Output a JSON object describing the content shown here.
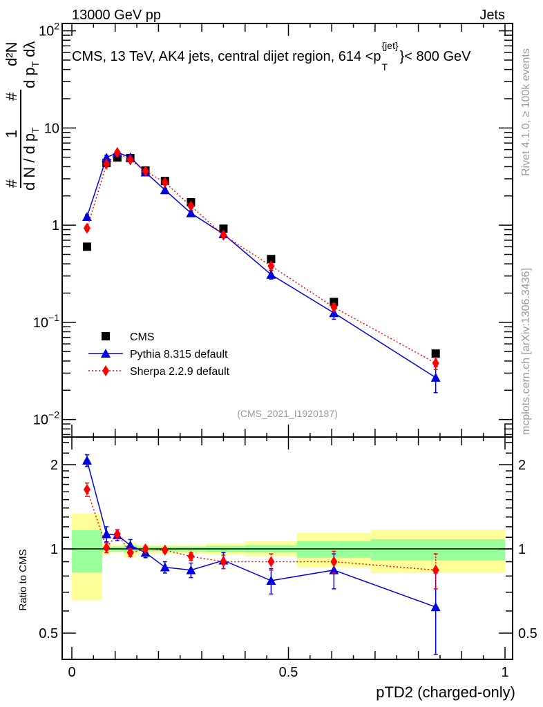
{
  "header": {
    "left": "13000 GeV pp",
    "right": "Jets",
    "side_top": "Rivet 4.1.0, ≥ 100k events",
    "side_bottom": "mcplots.cern.ch [arXiv:1306.3436]",
    "analysis_id": "(CMS_2021_I1920187)"
  },
  "chart_data": [
    {
      "type": "scatter",
      "title": "CMS, 13 TeV, AK4 jets, central dijet region, 614 <p_T^{jet}< 800 GeV",
      "title_parts": {
        "main": "CMS, 13 TeV, AK4 jets, central dijet region, 614 <p",
        "sub": "T",
        "sup": "{jet}",
        "tail": "}< 800 GeV"
      },
      "ylabel": "1 / (dN / dp_T) · d²N / (dp_T dλ)",
      "ylabel_parts": {
        "num_left": "1",
        "den_left": "d N / d p",
        "sub": "T",
        "num_right": "d²N",
        "den_right": "d p",
        "den_right_tail": "dλ",
        "hash": "#"
      },
      "yscale": "log",
      "ylim": [
        0.0066,
        119
      ],
      "ytick_labels": [
        {
          "v": 100,
          "base": "10",
          "exp": "2"
        },
        {
          "v": 10,
          "base": "10",
          "exp": ""
        },
        {
          "v": 1,
          "base": "1",
          "exp": ""
        },
        {
          "v": 0.1,
          "base": "10",
          "exp": "−1"
        },
        {
          "v": 0.01,
          "base": "10",
          "exp": "−2"
        }
      ],
      "x": [
        0.035,
        0.08,
        0.105,
        0.135,
        0.17,
        0.215,
        0.275,
        0.35,
        0.46,
        0.605,
        0.84
      ],
      "series": [
        {
          "name": "CMS",
          "marker": "square",
          "color": "#000000",
          "line": "none",
          "values": [
            0.6,
            4.36,
            4.98,
            4.9,
            3.65,
            2.85,
            1.72,
            0.92,
            0.448,
            0.162,
            0.0477
          ]
        },
        {
          "name": "Pythia 8.315 default",
          "marker": "triangle",
          "color": "#0000dd",
          "line": "solid",
          "values": [
            1.22,
            4.95,
            5.6,
            5.0,
            3.5,
            2.3,
            1.33,
            0.81,
            0.31,
            0.125,
            0.027
          ],
          "rel_err": [
            0.05,
            0.06,
            0.045,
            0.05,
            0.04,
            0.045,
            0.06,
            0.065,
            0.1,
            0.14,
            0.3
          ]
        },
        {
          "name": "Sherpa 2.2.9 default",
          "marker": "diamond",
          "color": "#ff0000",
          "line": "dotted",
          "values": [
            0.93,
            4.25,
            5.6,
            4.7,
            3.6,
            2.75,
            1.57,
            0.79,
            0.38,
            0.143,
            0.038
          ],
          "rel_err": [
            0.06,
            0.04,
            0.035,
            0.035,
            0.025,
            0.025,
            0.035,
            0.055,
            0.07,
            0.09,
            0.14
          ]
        }
      ],
      "legend": "middle-left"
    },
    {
      "type": "scatter",
      "ylabel": "Ratio to CMS",
      "xlabel": "pTD2 (charged-only)",
      "yscale": "log",
      "ylim": [
        0.403,
        2.51
      ],
      "xlim": [
        0,
        1
      ],
      "xtick_labels": [
        "0",
        "0.5",
        "1"
      ],
      "ytick_labels": [
        "2",
        "1",
        "0.5"
      ],
      "bins": [
        0,
        0.07,
        0.09,
        0.12,
        0.15,
        0.19,
        0.24,
        0.31,
        0.4,
        0.52,
        0.69,
        1.0
      ],
      "band_green": [
        [
          0.824,
          1.166
        ],
        [
          0.98,
          1.02
        ],
        [
          0.98,
          1.02
        ],
        [
          0.97,
          1.03
        ],
        [
          0.98,
          1.02
        ],
        [
          0.98,
          1.02
        ],
        [
          0.98,
          1.02
        ],
        [
          0.975,
          1.025
        ],
        [
          0.97,
          1.03
        ],
        [
          0.93,
          1.065
        ],
        [
          0.91,
          1.083
        ]
      ],
      "band_yellow": [
        [
          0.656,
          1.34
        ],
        [
          0.95,
          1.04
        ],
        [
          0.97,
          1.03
        ],
        [
          0.93,
          1.06
        ],
        [
          0.96,
          1.03
        ],
        [
          0.96,
          1.03
        ],
        [
          0.96,
          1.03
        ],
        [
          0.955,
          1.045
        ],
        [
          0.94,
          1.065
        ],
        [
          0.86,
          1.14
        ],
        [
          0.82,
          1.17
        ]
      ],
      "series": [
        {
          "name": "Pythia 8.315 default",
          "values": [
            2.07,
            1.13,
            1.12,
            1.03,
            0.97,
            0.86,
            0.84,
            0.91,
            0.77,
            0.84,
            0.62
          ],
          "err": [
            0.1,
            0.07,
            0.05,
            0.05,
            0.04,
            0.04,
            0.05,
            0.06,
            0.08,
            0.12,
            0.2
          ]
        },
        {
          "name": "Sherpa 2.2.9 default",
          "values": [
            1.63,
            1.01,
            1.13,
            0.97,
            1.0,
            0.99,
            0.94,
            0.9,
            0.9,
            0.9,
            0.84
          ],
          "err": [
            0.09,
            0.04,
            0.04,
            0.03,
            0.02,
            0.02,
            0.03,
            0.05,
            0.06,
            0.08,
            0.12
          ]
        }
      ]
    }
  ]
}
